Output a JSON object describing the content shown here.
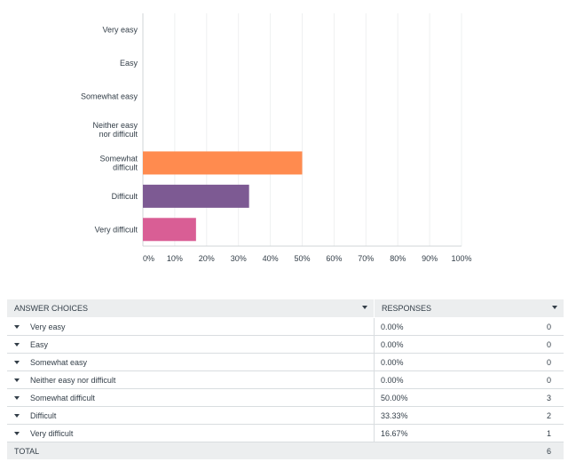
{
  "chart_data": {
    "type": "bar",
    "orientation": "horizontal",
    "categories": [
      "Very easy",
      "Easy",
      "Somewhat easy",
      "Neither easy nor difficult",
      "Somewhat difficult",
      "Difficult",
      "Very difficult"
    ],
    "category_lines": [
      [
        "Very easy"
      ],
      [
        "Easy"
      ],
      [
        "Somewhat easy"
      ],
      [
        "Neither easy",
        "nor difficult"
      ],
      [
        "Somewhat",
        "difficult"
      ],
      [
        "Difficult"
      ],
      [
        "Very difficult"
      ]
    ],
    "values": [
      0,
      0,
      0,
      0,
      50,
      33.33,
      16.67
    ],
    "colors": [
      "#ff8b4f",
      "#ff8b4f",
      "#ff8b4f",
      "#ff8b4f",
      "#ff8b4f",
      "#7d5a93",
      "#d95e95"
    ],
    "xlim": [
      0,
      100
    ],
    "xticks": [
      0,
      10,
      20,
      30,
      40,
      50,
      60,
      70,
      80,
      90,
      100
    ],
    "xtick_labels": [
      "0%",
      "10%",
      "20%",
      "30%",
      "40%",
      "50%",
      "60%",
      "70%",
      "80%",
      "90%",
      "100%"
    ],
    "grid": true
  },
  "table": {
    "headers": {
      "choices": "ANSWER CHOICES",
      "responses": "RESPONSES"
    },
    "rows": [
      {
        "choice": "Very easy",
        "percent": "0.00%",
        "count": "0"
      },
      {
        "choice": "Easy",
        "percent": "0.00%",
        "count": "0"
      },
      {
        "choice": "Somewhat easy",
        "percent": "0.00%",
        "count": "0"
      },
      {
        "choice": "Neither easy nor difficult",
        "percent": "0.00%",
        "count": "0"
      },
      {
        "choice": "Somewhat difficult",
        "percent": "50.00%",
        "count": "3"
      },
      {
        "choice": "Difficult",
        "percent": "33.33%",
        "count": "2"
      },
      {
        "choice": "Very difficult",
        "percent": "16.67%",
        "count": "1"
      }
    ],
    "total_label": "TOTAL",
    "total_value": "6"
  }
}
